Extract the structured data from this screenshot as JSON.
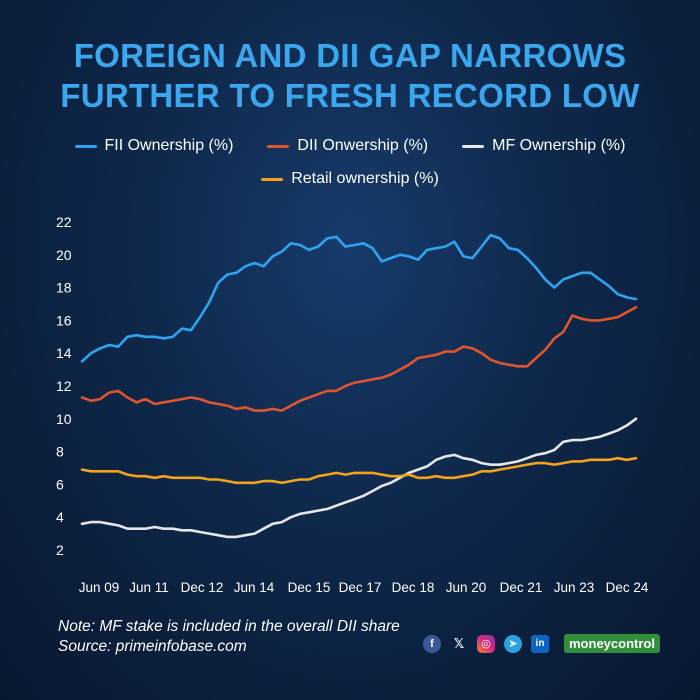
{
  "header": {
    "title_line1": "FOREIGN AND DII GAP NARROWS",
    "title_line2": "FURTHER TO FRESH RECORD LOW"
  },
  "footer": {
    "note": "Note: MF stake is included in the overall DII share",
    "source": "Source: primeinfobase.com",
    "brand": "moneycontrol",
    "icons": [
      "facebook-icon",
      "x-icon",
      "instagram-icon",
      "telegram-icon",
      "linkedin-icon"
    ]
  },
  "colors": {
    "title": "#3aa7ee",
    "fii": "#2fa3ef",
    "dii": "#e0552d",
    "mf": "#e6e6e6",
    "retail": "#f2a31b"
  },
  "chart_data": {
    "type": "line",
    "x_tick_labels": [
      "Jun 09",
      "Jun 11",
      "Dec 12",
      "Jun 14",
      "Dec 15",
      "Dec 17",
      "Dec 18",
      "Jun 20",
      "Dec 21",
      "Jun 23",
      "Dec 24"
    ],
    "y_ticks": [
      2,
      4,
      6,
      8,
      10,
      12,
      14,
      16,
      18,
      20,
      22
    ],
    "ylim": [
      2,
      22
    ],
    "grid": false,
    "legend_position": "top",
    "x_start": "Mar 09",
    "x_end": "Mar 25",
    "series": [
      {
        "name": "FII Ownership (%)",
        "color": "#2fa3ef",
        "values": [
          13.5,
          14.0,
          14.3,
          14.5,
          14.4,
          15.0,
          15.1,
          15.0,
          15.0,
          14.9,
          15.0,
          15.5,
          15.4,
          16.2,
          17.1,
          18.3,
          18.8,
          18.9,
          19.3,
          19.5,
          19.3,
          19.9,
          20.2,
          20.7,
          20.6,
          20.3,
          20.5,
          21.0,
          21.1,
          20.5,
          20.6,
          20.7,
          20.4,
          19.6,
          19.8,
          20.0,
          19.9,
          19.7,
          20.3,
          20.4,
          20.5,
          20.8,
          19.9,
          19.8,
          20.5,
          21.2,
          21.0,
          20.4,
          20.3,
          19.8,
          19.2,
          18.5,
          18.0,
          18.5,
          18.7,
          18.9,
          18.9,
          18.5,
          18.1,
          17.6,
          17.4,
          17.3
        ]
      },
      {
        "name": "DII Onwership (%)",
        "color": "#e0552d",
        "values": [
          11.3,
          11.1,
          11.2,
          11.6,
          11.7,
          11.3,
          11.0,
          11.2,
          10.9,
          11.0,
          11.1,
          11.2,
          11.3,
          11.2,
          11.0,
          10.9,
          10.8,
          10.6,
          10.7,
          10.5,
          10.5,
          10.6,
          10.5,
          10.8,
          11.1,
          11.3,
          11.5,
          11.7,
          11.7,
          12.0,
          12.2,
          12.3,
          12.4,
          12.5,
          12.7,
          13.0,
          13.3,
          13.7,
          13.8,
          13.9,
          14.1,
          14.1,
          14.4,
          14.3,
          14.0,
          13.6,
          13.4,
          13.3,
          13.2,
          13.2,
          13.7,
          14.2,
          14.9,
          15.3,
          16.3,
          16.1,
          16.0,
          16.0,
          16.1,
          16.2,
          16.5,
          16.8
        ]
      },
      {
        "name": "MF Ownership (%)",
        "color": "#e6e6e6",
        "values": [
          3.6,
          3.7,
          3.7,
          3.6,
          3.5,
          3.3,
          3.3,
          3.3,
          3.4,
          3.3,
          3.3,
          3.2,
          3.2,
          3.1,
          3.0,
          2.9,
          2.8,
          2.8,
          2.9,
          3.0,
          3.3,
          3.6,
          3.7,
          4.0,
          4.2,
          4.3,
          4.4,
          4.5,
          4.7,
          4.9,
          5.1,
          5.3,
          5.6,
          5.9,
          6.1,
          6.4,
          6.7,
          6.9,
          7.1,
          7.5,
          7.7,
          7.8,
          7.6,
          7.5,
          7.3,
          7.2,
          7.2,
          7.3,
          7.4,
          7.6,
          7.8,
          7.9,
          8.1,
          8.6,
          8.7,
          8.7,
          8.8,
          8.9,
          9.1,
          9.3,
          9.6,
          10.0
        ]
      },
      {
        "name": "Retail ownership (%)",
        "color": "#f2a31b",
        "values": [
          6.9,
          6.8,
          6.8,
          6.8,
          6.8,
          6.6,
          6.5,
          6.5,
          6.4,
          6.5,
          6.4,
          6.4,
          6.4,
          6.4,
          6.3,
          6.3,
          6.2,
          6.1,
          6.1,
          6.1,
          6.2,
          6.2,
          6.1,
          6.2,
          6.3,
          6.3,
          6.5,
          6.6,
          6.7,
          6.6,
          6.7,
          6.7,
          6.7,
          6.6,
          6.5,
          6.5,
          6.6,
          6.4,
          6.4,
          6.5,
          6.4,
          6.4,
          6.5,
          6.6,
          6.8,
          6.8,
          6.9,
          7.0,
          7.1,
          7.2,
          7.3,
          7.3,
          7.2,
          7.3,
          7.4,
          7.4,
          7.5,
          7.5,
          7.5,
          7.6,
          7.5,
          7.6
        ]
      }
    ]
  }
}
